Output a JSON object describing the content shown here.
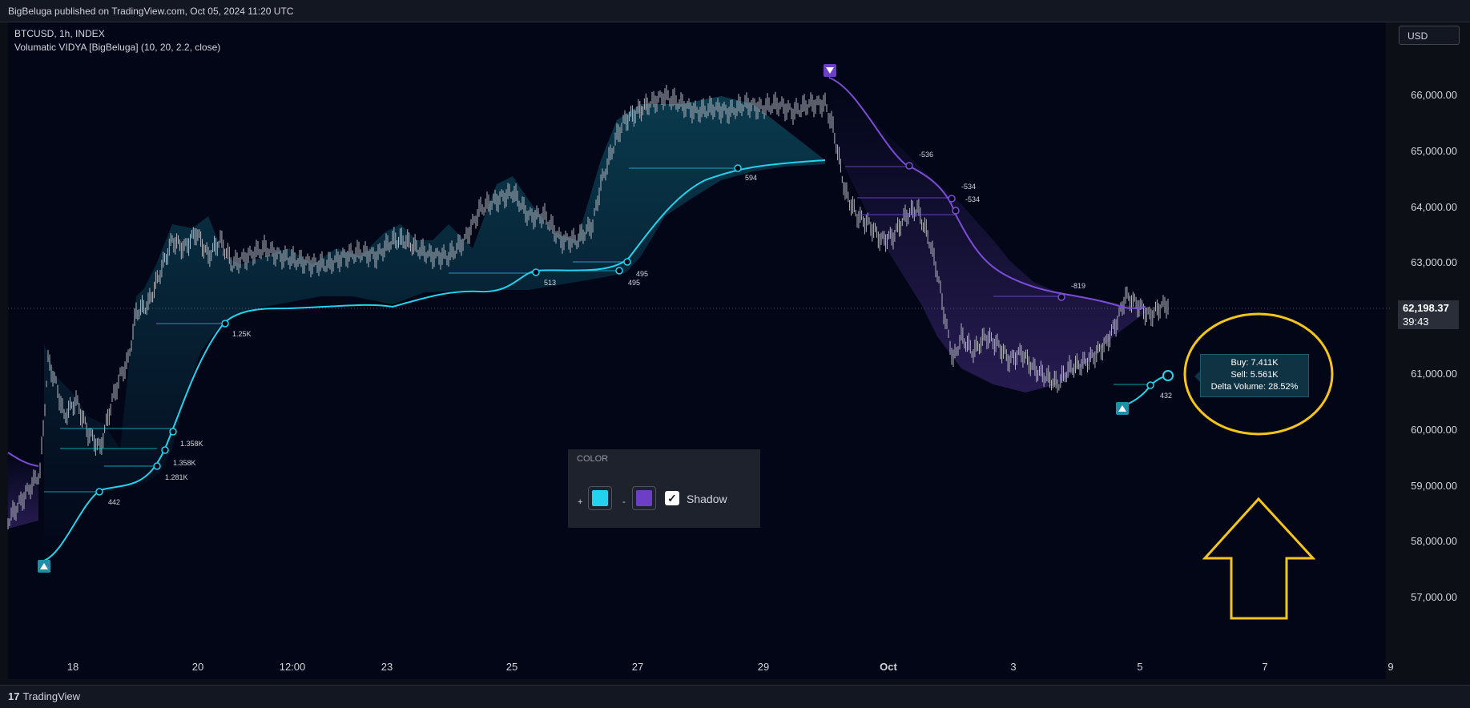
{
  "header": {
    "published": "BigBeluga published on TradingView.com, Oct 05, 2024 11:20 UTC"
  },
  "legend": {
    "symbol": "BTCUSD, 1h, INDEX",
    "indicator": "Volumatic VIDYA [BigBeluga] (10, 20, 2.2, close)"
  },
  "currency_button": "USD",
  "price_axis": [
    "66,000.00",
    "65,000.00",
    "64,000.00",
    "63,000.00",
    "61,000.00",
    "60,000.00",
    "59,000.00",
    "58,000.00",
    "57,000.00"
  ],
  "last_price": {
    "value": "62,198.37",
    "countdown": "39:43"
  },
  "time_axis": [
    "18",
    "20",
    "12:00",
    "23",
    "25",
    "27",
    "29",
    "Oct",
    "3",
    "5",
    "7",
    "9"
  ],
  "volume_labels": {
    "bull": [
      "442",
      "1.281K",
      "1.358K",
      "1.358K",
      "1.25K",
      "513",
      "495",
      "495",
      "594",
      "432"
    ],
    "bear": [
      "-536",
      "-534",
      "-534",
      "-819"
    ]
  },
  "tooltip": {
    "buy": "Buy: 7.411K",
    "sell": "Sell: 5.561K",
    "delta": "Delta Volume: 28.52%"
  },
  "settings_panel": {
    "title": "COLOR",
    "plus": "+",
    "minus": "-",
    "shadow_label": "Shadow",
    "shadow_checked": true,
    "bull_color": "#22d3ee",
    "bear_color": "#6d3fc7"
  },
  "footer": {
    "brand": "TradingView"
  },
  "colors": {
    "bull": "#22d3ee",
    "bear": "#7b4cd6",
    "annotation": "#f5c518",
    "background": "#020617"
  }
}
